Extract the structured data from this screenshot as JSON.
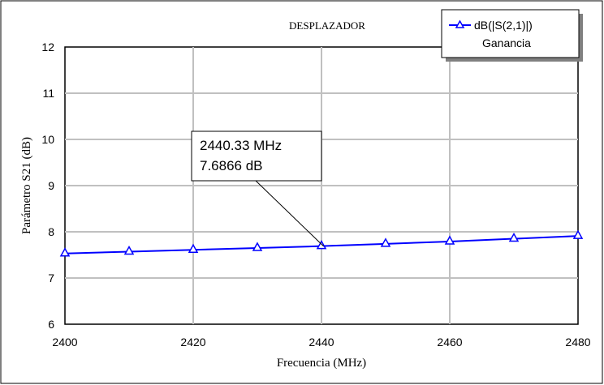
{
  "chart_data": {
    "type": "line",
    "title": "DESPLAZADOR",
    "xlabel": "Frecuencia (MHz)",
    "ylabel": "Parámetro S21 (dB)",
    "xlim": [
      2400,
      2480
    ],
    "ylim": [
      6,
      12
    ],
    "x_ticks": [
      "2400",
      "2420",
      "2440",
      "2460",
      "2480"
    ],
    "y_ticks": [
      "6",
      "7",
      "8",
      "9",
      "10",
      "11",
      "12"
    ],
    "grid": true,
    "legend_position": "top-right",
    "series": [
      {
        "name": "dB(|S(2,1)|)",
        "subtitle": "Ganancia",
        "color": "#0000ff",
        "marker": "triangle",
        "x": [
          2400,
          2410,
          2420,
          2430,
          2440,
          2450,
          2460,
          2470,
          2480
        ],
        "y": [
          7.53,
          7.57,
          7.61,
          7.65,
          7.69,
          7.74,
          7.79,
          7.85,
          7.91
        ]
      }
    ],
    "annotation": {
      "x": 2440.33,
      "y": 7.6866,
      "line1": "2440.33 MHz",
      "line2": "7.6866 dB"
    }
  }
}
